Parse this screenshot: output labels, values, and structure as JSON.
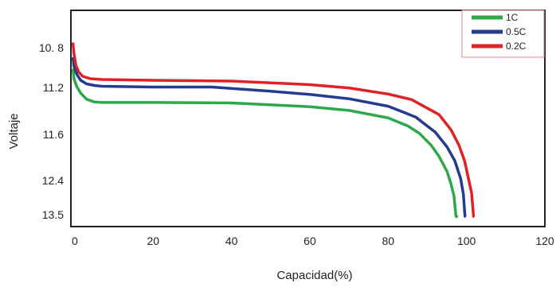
{
  "chart_data": {
    "type": "line",
    "title": "",
    "xlabel": "Capacidad(%)",
    "ylabel": "Voltaje",
    "xlim": [
      -1,
      120
    ],
    "x_ticks": [
      {
        "value": 0,
        "label": "0"
      },
      {
        "value": 20,
        "label": "20"
      },
      {
        "value": 40,
        "label": "40"
      },
      {
        "value": 60,
        "label": "60"
      },
      {
        "value": 80,
        "label": "80"
      },
      {
        "value": 100,
        "label": "100"
      },
      {
        "value": 120,
        "label": "120"
      }
    ],
    "y_ticks": [
      {
        "label": "13.5"
      },
      {
        "label": "12.4"
      },
      {
        "label": "11.6"
      },
      {
        "label": "11.2"
      },
      {
        "label": "10. 8"
      }
    ],
    "y_scale": "nonuniform",
    "y_note": "y values are expressed in tick-band units: 0 = '10. 8', 1 = '11.2', 2 = '11.6', 3 = '12.4', 4 = '13.5' (tick labels are unevenly spaced)",
    "ylim": [
      -0.07,
      4.46
    ],
    "grid": false,
    "legend_position": "top-right",
    "series": [
      {
        "name": "1C",
        "color": "#2ea84a",
        "x": [
          -0.5,
          -0.2,
          0.5,
          1.5,
          3,
          5,
          7,
          20,
          40,
          60,
          70,
          80,
          85,
          88,
          91,
          93,
          95,
          96,
          96.8,
          97.3,
          97.6,
          97.8
        ],
        "y": [
          3.47,
          3.22,
          3.02,
          2.88,
          2.75,
          2.69,
          2.68,
          2.68,
          2.67,
          2.59,
          2.51,
          2.35,
          2.18,
          2.02,
          1.76,
          1.52,
          1.2,
          0.91,
          0.55,
          -0.05,
          -0.06,
          -0.07
        ]
      },
      {
        "name": "0.5C",
        "color": "#253c8e",
        "x": [
          -0.5,
          -0.2,
          0.5,
          1.5,
          3,
          5,
          7,
          20,
          35,
          50,
          60,
          70,
          80,
          87,
          92,
          95,
          97,
          98.5,
          99.2,
          99.6,
          99.8
        ],
        "y": [
          3.76,
          3.53,
          3.33,
          3.18,
          3.09,
          3.05,
          3.03,
          3.01,
          3.01,
          2.92,
          2.85,
          2.76,
          2.6,
          2.37,
          2.05,
          1.73,
          1.43,
          1.04,
          0.6,
          -0.05,
          -0.07
        ]
      },
      {
        "name": "0.2C",
        "color": "#e02227",
        "x": [
          -0.5,
          -0.2,
          0.3,
          1,
          2,
          4,
          7,
          20,
          40,
          60,
          70,
          80,
          86,
          93,
          96,
          98,
          99.5,
          100.5,
          101.3,
          101.8,
          102
        ],
        "y": [
          4.13,
          3.85,
          3.55,
          3.39,
          3.28,
          3.22,
          3.2,
          3.18,
          3.16,
          3.07,
          2.99,
          2.86,
          2.74,
          2.42,
          2.1,
          1.78,
          1.43,
          1.04,
          0.64,
          -0.05,
          -0.07
        ]
      }
    ]
  }
}
